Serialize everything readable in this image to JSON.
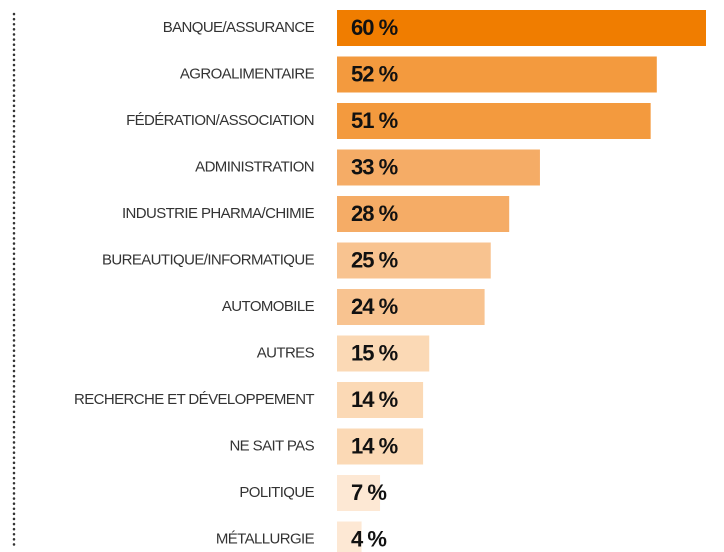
{
  "chart_data": {
    "type": "barh",
    "categories": [
      "BANQUE/ASSURANCE",
      "AGROALIMENTAIRE",
      "FÉDÉRATION/ASSOCIATION",
      "ADMINISTRATION",
      "INDUSTRIE PHARMA/CHIMIE",
      "BUREAUTIQUE/INFORMATIQUE",
      "AUTOMOBILE",
      "AUTRES",
      "RECHERCHE ET DÉVELOPPEMENT",
      "NE SAIT PAS",
      "POLITIQUE",
      "MÉTALLURGIE"
    ],
    "values": [
      60,
      52,
      51,
      33,
      28,
      25,
      24,
      15,
      14,
      14,
      7,
      4
    ],
    "value_labels": [
      "60 %",
      "52 %",
      "51 %",
      "33 %",
      "28 %",
      "25 %",
      "24 %",
      "15 %",
      "14 %",
      "14 %",
      "7 %",
      "4 %"
    ],
    "colors": [
      "#f07d00",
      "#f39a3e",
      "#f39a3e",
      "#f5ac66",
      "#f5ac66",
      "#f8c390",
      "#f8c390",
      "#fbd9b5",
      "#fbd9b5",
      "#fbd9b5",
      "#fde8d4",
      "#fde8d4"
    ]
  }
}
